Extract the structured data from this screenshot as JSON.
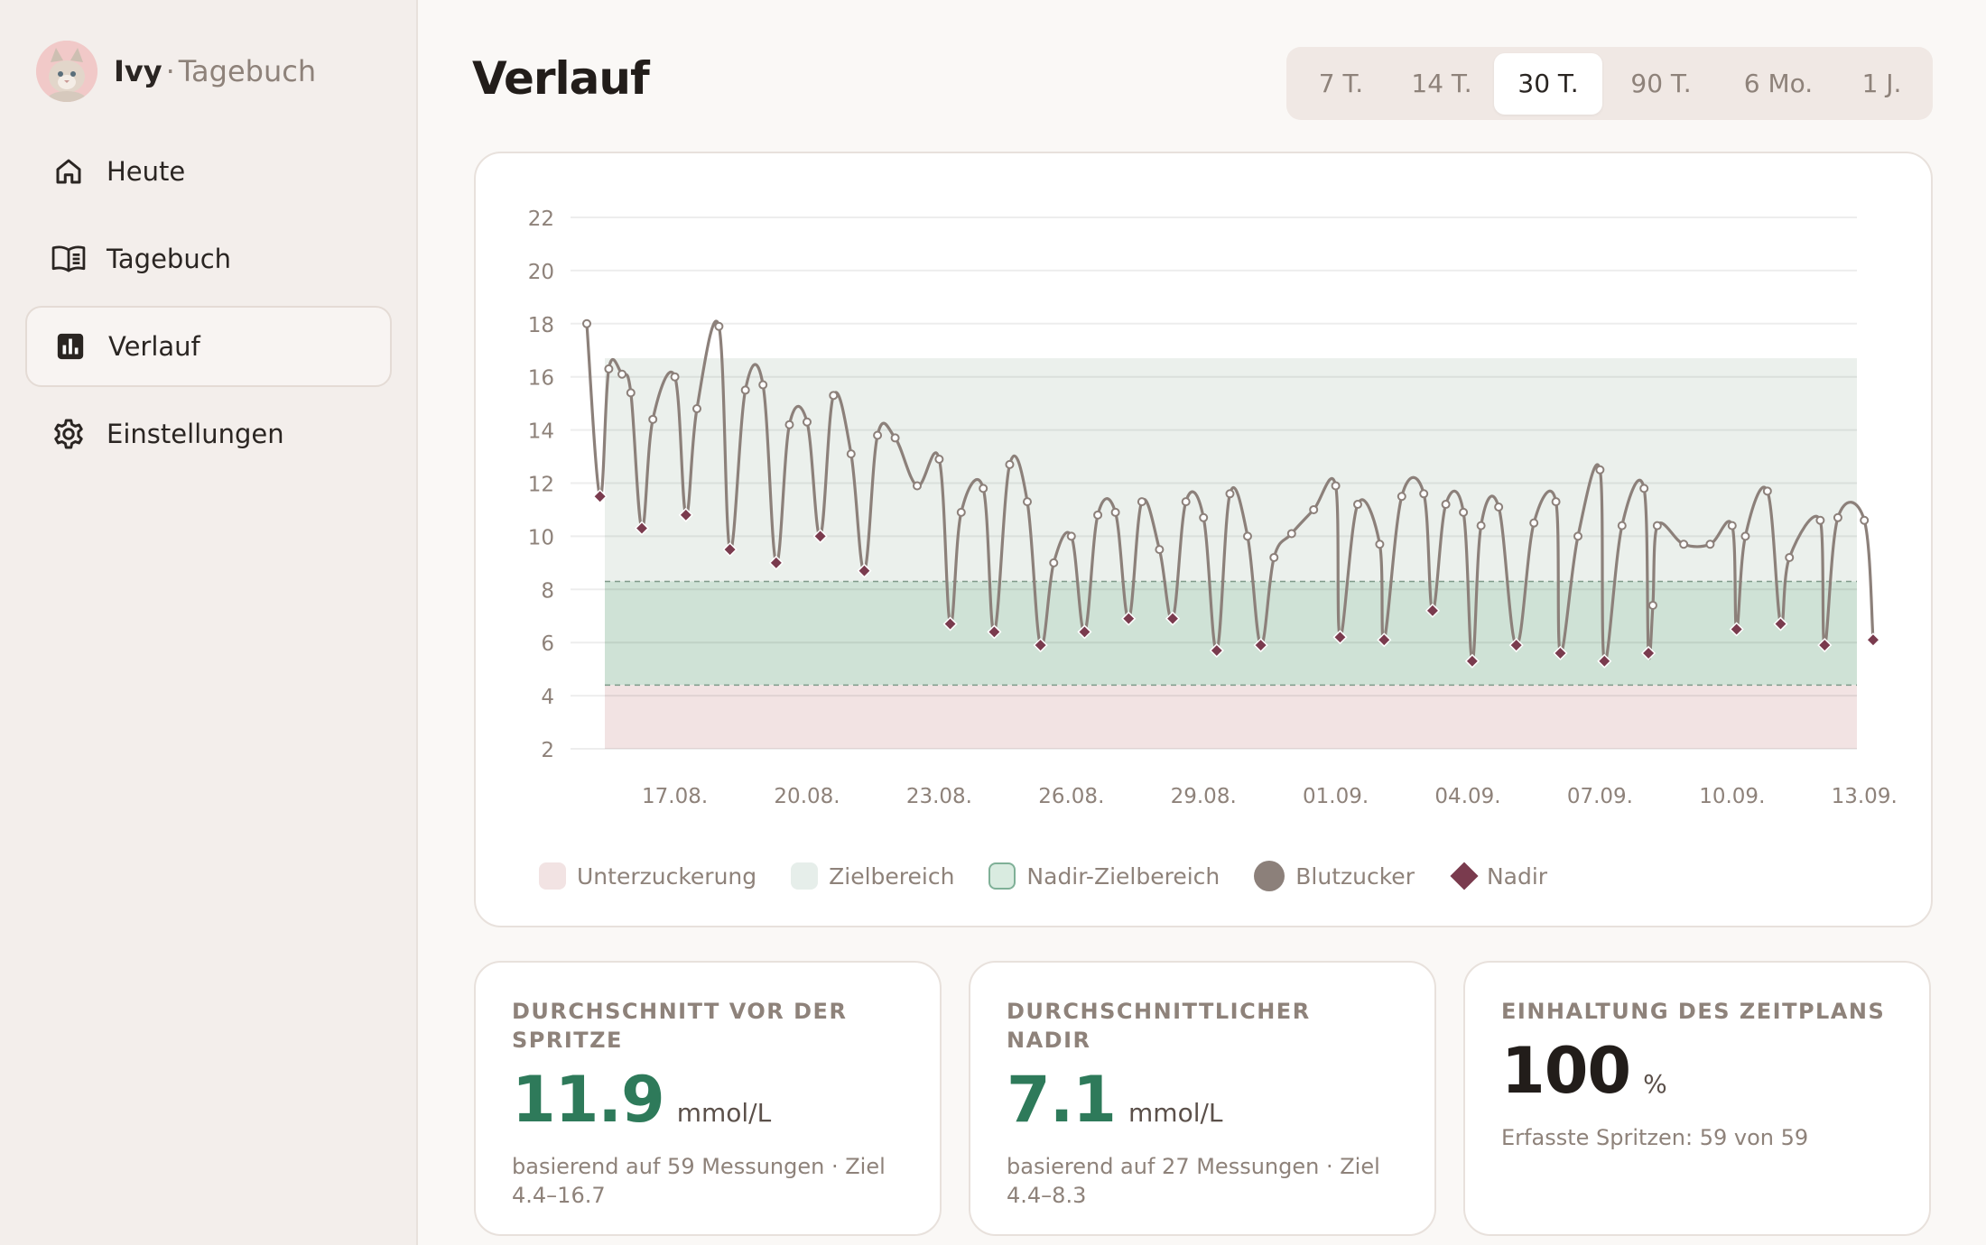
{
  "app": {
    "name": "Ivy",
    "separator": "·",
    "subtitle": "Tagebuch"
  },
  "nav": [
    {
      "label": "Heute",
      "icon": "home-icon",
      "active": false
    },
    {
      "label": "Tagebuch",
      "icon": "book-icon",
      "active": false
    },
    {
      "label": "Verlauf",
      "icon": "chart-icon",
      "active": true
    },
    {
      "label": "Einstellungen",
      "icon": "gear-icon",
      "active": false
    }
  ],
  "page": {
    "title": "Verlauf"
  },
  "range_tabs": [
    {
      "label": "7 T.",
      "active": false
    },
    {
      "label": "14 T.",
      "active": false
    },
    {
      "label": "30 T.",
      "active": true
    },
    {
      "label": "90 T.",
      "active": false
    },
    {
      "label": "6 Mo.",
      "active": false
    },
    {
      "label": "1 J.",
      "active": false
    }
  ],
  "colors": {
    "accent_green": "#2e7a5a",
    "line": "#8c807a",
    "nadir": "#7a3b4e",
    "hypo_band": "#f2e3e3",
    "target_band": "#ebf0ec",
    "nadir_band": "#cfe2d6"
  },
  "legend": [
    {
      "label": "Unterzuckerung",
      "color": "#f2e3e3",
      "shape": "square"
    },
    {
      "label": "Zielbereich",
      "color": "#ebf0ec",
      "shape": "square"
    },
    {
      "label": "Nadir-Zielbereich",
      "color": "#d9ebe0",
      "shape": "square-outlined"
    },
    {
      "label": "Blutzucker",
      "color": "#8c807a",
      "shape": "circle"
    },
    {
      "label": "Nadir",
      "color": "#7a3b4e",
      "shape": "diamond"
    }
  ],
  "chart_data": {
    "type": "line",
    "ylim": [
      2,
      22
    ],
    "yticks": [
      2,
      4,
      6,
      8,
      10,
      12,
      14,
      16,
      18,
      20,
      22
    ],
    "xlim": [
      0,
      30
    ],
    "x_ticks": [
      {
        "x": 2,
        "label": "17.08."
      },
      {
        "x": 5,
        "label": "20.08."
      },
      {
        "x": 8,
        "label": "23.08."
      },
      {
        "x": 11,
        "label": "26.08."
      },
      {
        "x": 14,
        "label": "29.08."
      },
      {
        "x": 17,
        "label": "01.09."
      },
      {
        "x": 20,
        "label": "04.09."
      },
      {
        "x": 23,
        "label": "07.09."
      },
      {
        "x": 26,
        "label": "10.09."
      },
      {
        "x": 29,
        "label": "13.09."
      }
    ],
    "bands": {
      "hypo": [
        2,
        4.4
      ],
      "target": [
        4.4,
        16.7
      ],
      "nadir_target": [
        4.4,
        8.3
      ]
    },
    "series": [
      {
        "name": "Blutzucker",
        "points": [
          [
            0.0,
            18.0
          ],
          [
            0.3,
            11.5
          ],
          [
            0.5,
            16.3
          ],
          [
            0.8,
            16.1
          ],
          [
            1.0,
            15.4
          ],
          [
            1.25,
            10.3
          ],
          [
            1.5,
            14.4
          ],
          [
            2.0,
            16.0
          ],
          [
            2.25,
            10.8
          ],
          [
            2.5,
            14.8
          ],
          [
            3.0,
            17.9
          ],
          [
            3.25,
            9.5
          ],
          [
            3.6,
            15.5
          ],
          [
            4.0,
            15.7
          ],
          [
            4.3,
            9.0
          ],
          [
            4.6,
            14.2
          ],
          [
            5.0,
            14.3
          ],
          [
            5.3,
            10.0
          ],
          [
            5.6,
            15.3
          ],
          [
            6.0,
            13.1
          ],
          [
            6.3,
            8.7
          ],
          [
            6.6,
            13.8
          ],
          [
            7.0,
            13.7
          ],
          [
            7.5,
            11.9
          ],
          [
            8.0,
            12.9
          ],
          [
            8.25,
            6.7
          ],
          [
            8.5,
            10.9
          ],
          [
            9.0,
            11.8
          ],
          [
            9.25,
            6.4
          ],
          [
            9.6,
            12.7
          ],
          [
            10.0,
            11.3
          ],
          [
            10.3,
            5.9
          ],
          [
            10.6,
            9.0
          ],
          [
            11.0,
            10.0
          ],
          [
            11.3,
            6.4
          ],
          [
            11.6,
            10.8
          ],
          [
            12.0,
            10.9
          ],
          [
            12.3,
            6.9
          ],
          [
            12.6,
            11.3
          ],
          [
            13.0,
            9.5
          ],
          [
            13.3,
            6.9
          ],
          [
            13.6,
            11.3
          ],
          [
            14.0,
            10.7
          ],
          [
            14.3,
            5.7
          ],
          [
            14.6,
            11.6
          ],
          [
            15.0,
            10.0
          ],
          [
            15.3,
            5.9
          ],
          [
            15.6,
            9.2
          ],
          [
            16.0,
            10.1
          ],
          [
            16.5,
            11.0
          ],
          [
            17.0,
            11.9
          ],
          [
            17.1,
            6.2
          ],
          [
            17.5,
            11.2
          ],
          [
            18.0,
            9.7
          ],
          [
            18.1,
            6.1
          ],
          [
            18.5,
            11.5
          ],
          [
            19.0,
            11.6
          ],
          [
            19.2,
            7.2
          ],
          [
            19.5,
            11.2
          ],
          [
            19.9,
            10.9
          ],
          [
            20.1,
            5.3
          ],
          [
            20.3,
            10.4
          ],
          [
            20.7,
            11.1
          ],
          [
            21.1,
            5.9
          ],
          [
            21.5,
            10.5
          ],
          [
            22.0,
            11.3
          ],
          [
            22.1,
            5.6
          ],
          [
            22.5,
            10.0
          ],
          [
            23.0,
            12.5
          ],
          [
            23.1,
            5.3
          ],
          [
            23.5,
            10.4
          ],
          [
            24.0,
            11.8
          ],
          [
            24.1,
            5.6
          ],
          [
            24.2,
            7.4
          ],
          [
            24.3,
            10.4
          ],
          [
            24.9,
            9.7
          ],
          [
            25.5,
            9.7
          ],
          [
            26.0,
            10.4
          ],
          [
            26.1,
            6.5
          ],
          [
            26.3,
            10.0
          ],
          [
            26.8,
            11.7
          ],
          [
            27.1,
            6.7
          ],
          [
            27.3,
            9.2
          ],
          [
            28.0,
            10.6
          ],
          [
            28.1,
            5.9
          ],
          [
            28.4,
            10.7
          ],
          [
            29.0,
            10.6
          ],
          [
            29.2,
            6.1
          ]
        ]
      },
      {
        "name": "Nadir",
        "points": [
          [
            0.3,
            11.5
          ],
          [
            1.25,
            10.3
          ],
          [
            2.25,
            10.8
          ],
          [
            3.25,
            9.5
          ],
          [
            4.3,
            9.0
          ],
          [
            5.3,
            10.0
          ],
          [
            6.3,
            8.7
          ],
          [
            8.25,
            6.7
          ],
          [
            9.25,
            6.4
          ],
          [
            10.3,
            5.9
          ],
          [
            11.3,
            6.4
          ],
          [
            12.3,
            6.9
          ],
          [
            13.3,
            6.9
          ],
          [
            14.3,
            5.7
          ],
          [
            15.3,
            5.9
          ],
          [
            17.1,
            6.2
          ],
          [
            18.1,
            6.1
          ],
          [
            19.2,
            7.2
          ],
          [
            20.1,
            5.3
          ],
          [
            21.1,
            5.9
          ],
          [
            22.1,
            5.6
          ],
          [
            23.1,
            5.3
          ],
          [
            24.1,
            5.6
          ],
          [
            26.1,
            6.5
          ],
          [
            27.1,
            6.7
          ],
          [
            28.1,
            5.9
          ],
          [
            29.2,
            6.1
          ]
        ]
      }
    ]
  },
  "stats": [
    {
      "label": "Durchschnitt vor der Spritze",
      "value": "11.9",
      "unit": "mmol/L",
      "note": "basierend auf 59 Messungen · Ziel 4.4–16.7",
      "color": "#2e7a5a"
    },
    {
      "label": "Durchschnittlicher Nadir",
      "value": "7.1",
      "unit": "mmol/L",
      "note": "basierend auf 27 Messungen · Ziel 4.4–8.3",
      "color": "#2e7a5a"
    },
    {
      "label": "Einhaltung des Zeitplans",
      "value": "100",
      "unit": "%",
      "note": "Erfasste Spritzen: 59 von 59",
      "color": "#221d1a"
    }
  ]
}
